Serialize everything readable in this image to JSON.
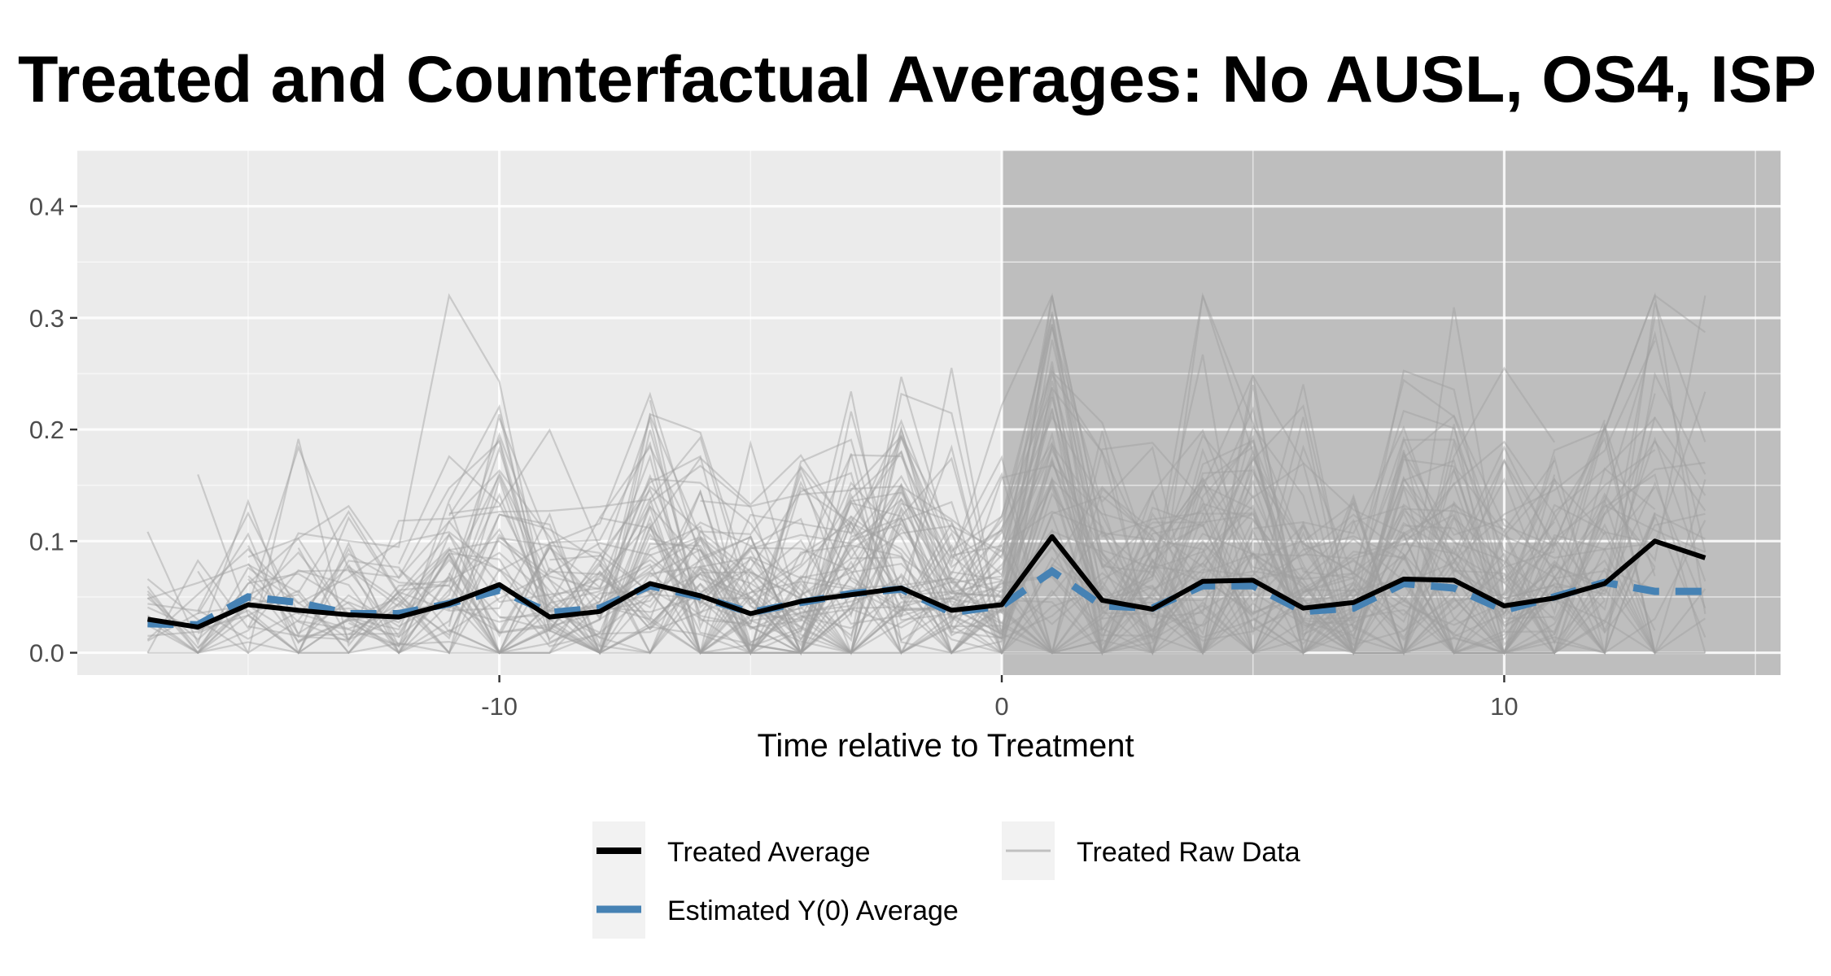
{
  "chart_data": {
    "type": "line",
    "title": "Treated and Counterfactual Averages: No AUSL, OS4, ISP",
    "xlabel": "Time relative to Treatment",
    "ylabel": "",
    "xlim": [
      -18.4,
      15.5
    ],
    "ylim": [
      -0.02,
      0.45
    ],
    "x_ticks": [
      -10,
      0,
      10
    ],
    "x_tick_labels": [
      "-10",
      "0",
      "10"
    ],
    "y_ticks": [
      0.0,
      0.1,
      0.2,
      0.3,
      0.4
    ],
    "y_tick_labels": [
      "0.0",
      "0.1",
      "0.2",
      "0.3",
      "0.4"
    ],
    "grid": true,
    "legend_position": "bottom",
    "treatment_start": 0,
    "colors": {
      "panel_pre": "#ebebeb",
      "panel_post": "#bebebe",
      "treated_average": "#000000",
      "estimated_y0": "#4682b4",
      "raw_data": "#a0a0a0"
    },
    "x": [
      -17,
      -16,
      -15,
      -14,
      -13,
      -12,
      -11,
      -10,
      -9,
      -8,
      -7,
      -6,
      -5,
      -4,
      -3,
      -2,
      -1,
      0,
      1,
      2,
      3,
      4,
      5,
      6,
      7,
      8,
      9,
      10,
      11,
      12,
      13,
      14
    ],
    "series": [
      {
        "name": "Treated Average",
        "style": "solid",
        "color": "#000000",
        "values": [
          0.03,
          0.023,
          0.043,
          0.038,
          0.034,
          0.032,
          0.044,
          0.061,
          0.032,
          0.037,
          0.062,
          0.051,
          0.035,
          0.046,
          0.052,
          0.058,
          0.038,
          0.043,
          0.104,
          0.047,
          0.039,
          0.064,
          0.065,
          0.04,
          0.045,
          0.066,
          0.065,
          0.042,
          0.049,
          0.062,
          0.1,
          0.085
        ]
      },
      {
        "name": "Estimated Y(0) Average",
        "style": "dashed",
        "color": "#4682b4",
        "values": [
          0.026,
          0.025,
          0.05,
          0.045,
          0.035,
          0.035,
          0.044,
          0.056,
          0.036,
          0.04,
          0.06,
          0.05,
          0.036,
          0.045,
          0.053,
          0.057,
          0.036,
          0.042,
          0.073,
          0.042,
          0.04,
          0.06,
          0.06,
          0.037,
          0.04,
          0.062,
          0.058,
          0.038,
          0.05,
          0.063,
          0.055,
          0.055
        ]
      }
    ],
    "raw_series_name": "Treated Raw Data",
    "raw_series_count": 70,
    "legend": {
      "entries": [
        "Treated Average",
        "Estimated Y(0) Average",
        "Treated Raw Data"
      ]
    }
  }
}
